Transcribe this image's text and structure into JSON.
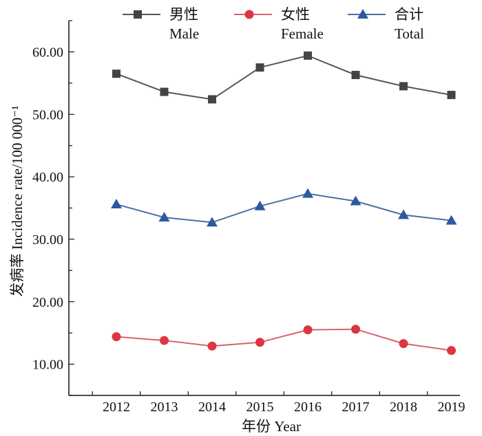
{
  "chart_data": {
    "type": "line",
    "title": "",
    "xlabel": "年份 Year",
    "ylabel": "发病率 Incidence rate/100 000⁻¹",
    "categories": [
      "2012",
      "2013",
      "2014",
      "2015",
      "2016",
      "2017",
      "2018",
      "2019"
    ],
    "ylim": [
      5,
      65
    ],
    "yticks": [
      "10.00",
      "20.00",
      "30.00",
      "40.00",
      "50.00",
      "60.00"
    ],
    "grid": false,
    "legend_position": "top",
    "series": [
      {
        "name": "男性",
        "name_en": "Male",
        "values": [
          56.5,
          53.6,
          52.4,
          57.5,
          59.4,
          56.3,
          54.5,
          53.1
        ],
        "color": "#555555",
        "marker": "square",
        "marker_color": "#4a4242"
      },
      {
        "name": "女性",
        "name_en": "Female",
        "values": [
          14.4,
          13.8,
          12.9,
          13.5,
          15.5,
          15.6,
          13.3,
          12.2
        ],
        "color": "#d9606e",
        "marker": "circle",
        "marker_color": "#dc3545"
      },
      {
        "name": "合计",
        "name_en": "Total",
        "values": [
          35.6,
          33.5,
          32.7,
          35.3,
          37.3,
          36.1,
          33.9,
          33.0
        ],
        "color": "#4a6fa5",
        "marker": "triangle",
        "marker_color": "#2c5aa0"
      }
    ]
  }
}
